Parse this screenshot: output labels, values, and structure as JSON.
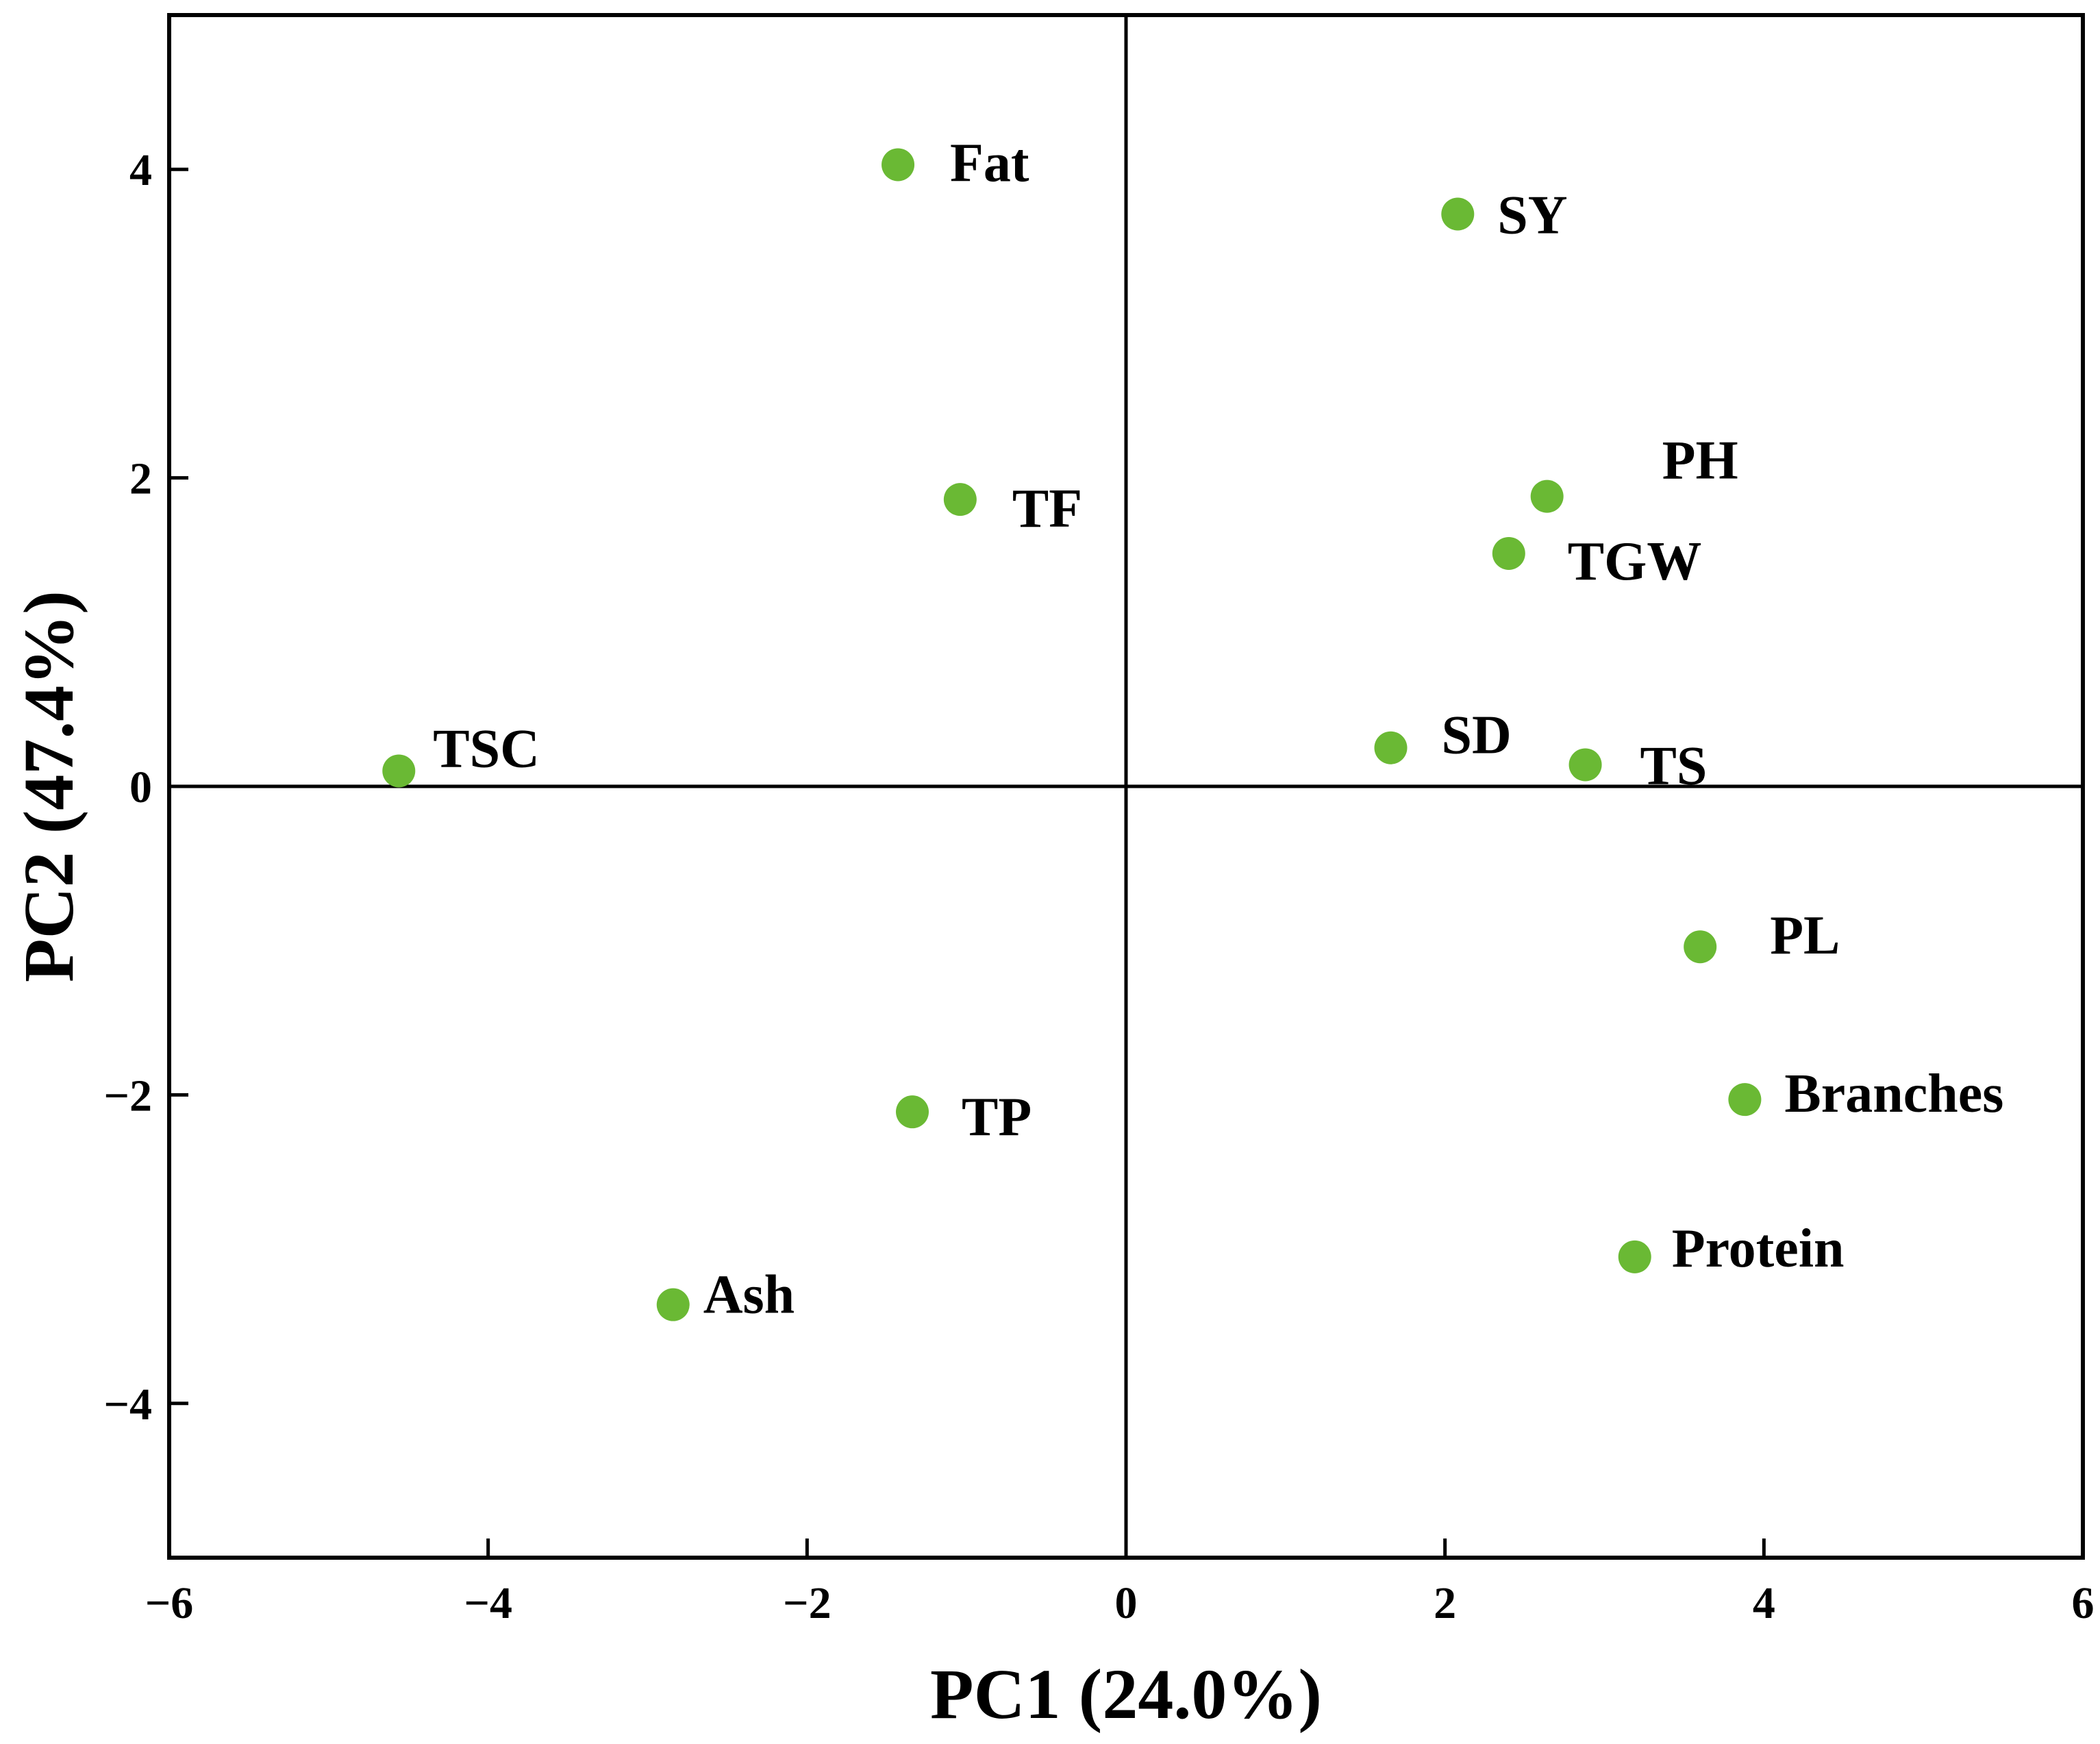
{
  "chart_data": {
    "type": "scatter",
    "title": "",
    "xlabel": "PC1 (24.0%)",
    "ylabel": "PC2 (47.4%)",
    "xlim": [
      -6,
      6
    ],
    "ylim": [
      -5,
      5
    ],
    "xticks": [
      -6,
      -4,
      -2,
      0,
      2,
      4,
      6
    ],
    "yticks": [
      -4,
      -2,
      0,
      2,
      4
    ],
    "xtick_labels": [
      "−6",
      "−4",
      "−2",
      "0",
      "2",
      "4",
      "6"
    ],
    "ytick_labels": [
      "−4",
      "−2",
      "0",
      "2",
      "4"
    ],
    "grid": false,
    "zero_lines": true,
    "point_color": "#6ab934",
    "points": [
      {
        "label": "Fat",
        "x": -1.43,
        "y": 4.03
      },
      {
        "label": "SY",
        "x": 2.08,
        "y": 3.71
      },
      {
        "label": "TF",
        "x": -1.04,
        "y": 1.86
      },
      {
        "label": "PH",
        "x": 2.64,
        "y": 1.88
      },
      {
        "label": "TGW",
        "x": 2.4,
        "y": 1.51
      },
      {
        "label": "TSC",
        "x": -4.56,
        "y": 0.1
      },
      {
        "label": "SD",
        "x": 1.66,
        "y": 0.25
      },
      {
        "label": "TS",
        "x": 2.88,
        "y": 0.14
      },
      {
        "label": "PL",
        "x": 3.6,
        "y": -1.04
      },
      {
        "label": "Branches",
        "x": 3.88,
        "y": -2.03
      },
      {
        "label": "TP",
        "x": -1.34,
        "y": -2.11
      },
      {
        "label": "Protein",
        "x": 3.19,
        "y": -3.05
      },
      {
        "label": "Ash",
        "x": -2.84,
        "y": -3.36
      }
    ]
  }
}
